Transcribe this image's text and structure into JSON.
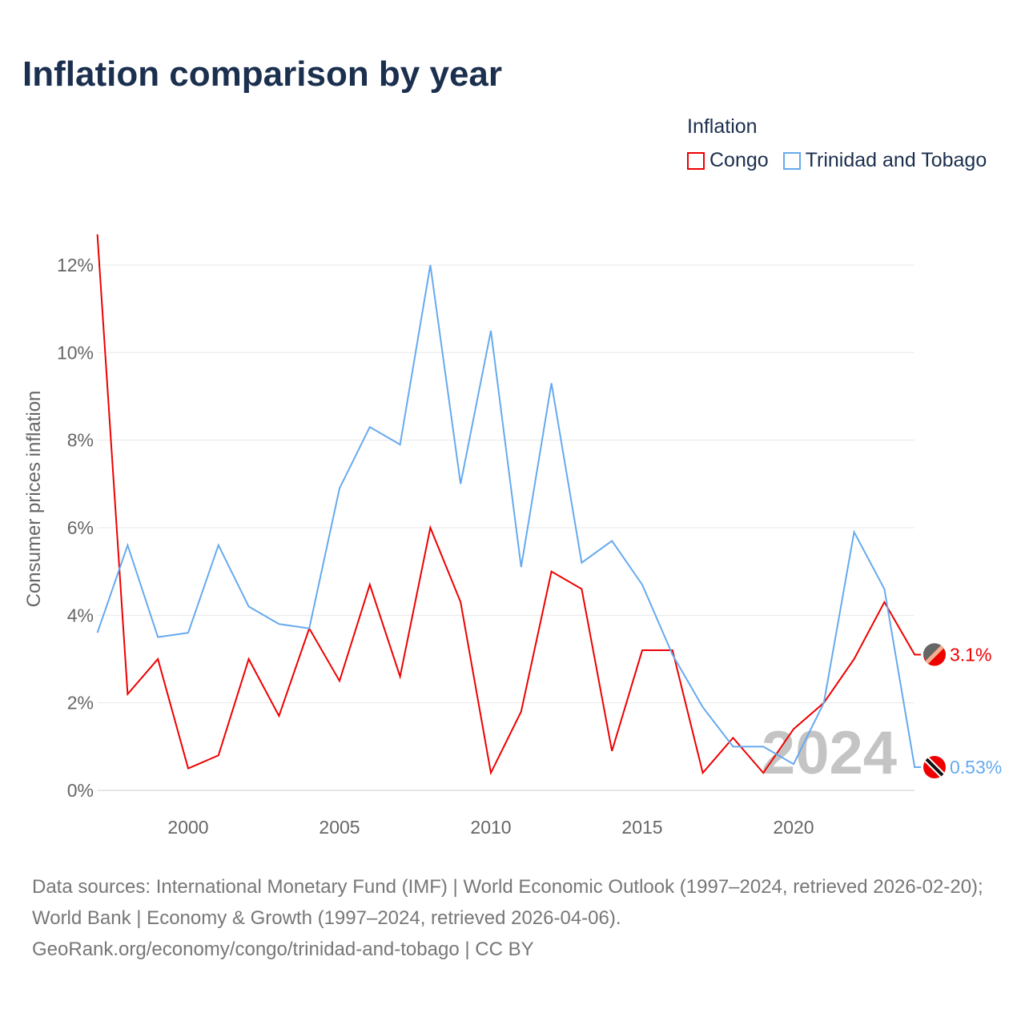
{
  "title": "Inflation comparison by year",
  "legend_title": "Inflation",
  "source_lines": [
    "Data sources: International Monetary Fund (IMF) | World Economic Outlook (1997–2024, retrieved 2026-02-20); World Bank | Economy & Growth (1997–2024, retrieved 2026-04-06).",
    "GeoRank.org/economy/congo/trinidad-and-tobago | CC BY"
  ],
  "chart_data": {
    "type": "line",
    "ylabel": "Consumer prices inflation",
    "xlabel": "",
    "xlim": [
      1997,
      2024
    ],
    "ylim": [
      0,
      12.7
    ],
    "x_ticks": [
      2000,
      2005,
      2010,
      2015,
      2020
    ],
    "y_ticks": [
      0,
      2,
      4,
      6,
      8,
      10,
      12
    ],
    "y_tick_labels": [
      "0%",
      "2%",
      "4%",
      "6%",
      "8%",
      "10%",
      "12%"
    ],
    "grid": true,
    "watermark": "2024",
    "legend_position": "top-right",
    "x": [
      1997,
      1998,
      1999,
      2000,
      2001,
      2002,
      2003,
      2004,
      2005,
      2006,
      2007,
      2008,
      2009,
      2010,
      2011,
      2012,
      2013,
      2014,
      2015,
      2016,
      2017,
      2018,
      2019,
      2020,
      2021,
      2022,
      2023,
      2024
    ],
    "series": [
      {
        "name": "Congo",
        "color": "#ee0000",
        "end_label": "3.1%",
        "values": [
          12.7,
          2.2,
          3.0,
          0.5,
          0.8,
          3.0,
          1.7,
          3.7,
          2.5,
          4.7,
          2.6,
          6.0,
          4.3,
          0.4,
          1.8,
          5.0,
          4.6,
          0.9,
          3.2,
          3.2,
          0.4,
          1.2,
          0.4,
          1.4,
          2.0,
          3.0,
          4.3,
          3.1
        ]
      },
      {
        "name": "Trinidad and Tobago",
        "color": "#66aaee",
        "end_label": "0.53%",
        "values": [
          3.6,
          5.6,
          3.5,
          3.6,
          5.6,
          4.2,
          3.8,
          3.7,
          6.9,
          8.3,
          7.9,
          12.0,
          7.0,
          10.5,
          5.1,
          9.3,
          5.2,
          5.7,
          4.7,
          3.1,
          1.9,
          1.0,
          1.0,
          0.6,
          2.0,
          5.9,
          4.6,
          0.53
        ]
      }
    ]
  }
}
